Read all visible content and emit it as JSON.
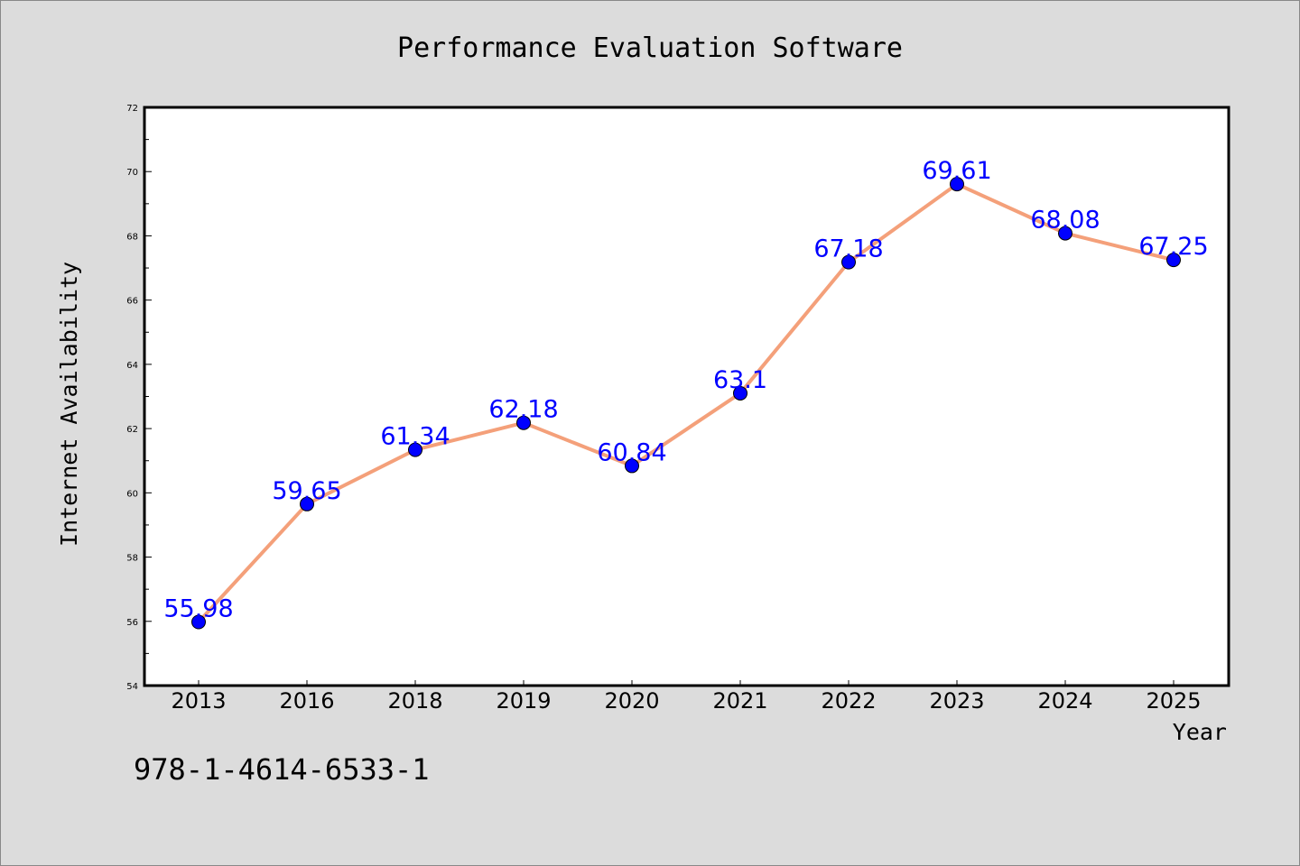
{
  "chart_data": {
    "type": "line",
    "title": "Performance Evaluation Software",
    "xlabel": "Year",
    "ylabel": "Internet Availability",
    "categories": [
      "2013",
      "2016",
      "2018",
      "2019",
      "2020",
      "2021",
      "2022",
      "2023",
      "2024",
      "2025"
    ],
    "series": [
      {
        "values": [
          55.98,
          59.65,
          61.34,
          62.18,
          60.84,
          63.1,
          67.18,
          69.61,
          68.08,
          67.25
        ]
      }
    ],
    "data_labels": [
      "55.98",
      "59.65",
      "61.34",
      "62.18",
      "60.84",
      "63.1",
      "67.18",
      "69.61",
      "68.08",
      "67.25"
    ],
    "ylim": [
      54,
      72
    ],
    "yticks": [
      "54",
      "56",
      "58",
      "60",
      "62",
      "64",
      "66",
      "68",
      "70",
      "72"
    ],
    "grid": false,
    "legend": "none",
    "colors": {
      "line": "#f4a07a",
      "marker": "#0000ff",
      "label": "#0000ff",
      "background": "#dcdcdc",
      "plot_background": "#ffffff"
    }
  },
  "footnote": "978-1-4614-6533-1"
}
